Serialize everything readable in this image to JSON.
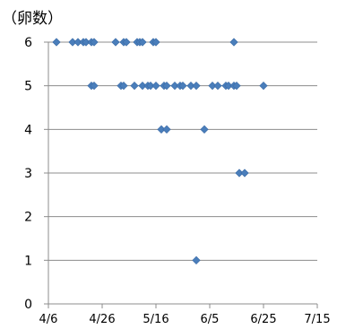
{
  "chart_data": {
    "type": "scatter",
    "title": "",
    "ylabel": "（卵数）",
    "xlabel": "",
    "ylim": [
      0,
      6
    ],
    "yticks": [
      "0",
      "1",
      "2",
      "3",
      "4",
      "5",
      "6"
    ],
    "xticks": [
      "4/6",
      "4/26",
      "5/16",
      "6/5",
      "6/25",
      "7/15"
    ],
    "x_range": [
      "4/6",
      "7/15"
    ],
    "grid": "horizontal",
    "marker_color": "#4a7ebb",
    "points": [
      {
        "x": "4/9",
        "y": 6
      },
      {
        "x": "4/15",
        "y": 6
      },
      {
        "x": "4/17",
        "y": 6
      },
      {
        "x": "4/19",
        "y": 6
      },
      {
        "x": "4/20",
        "y": 6
      },
      {
        "x": "4/22",
        "y": 6
      },
      {
        "x": "4/23",
        "y": 6
      },
      {
        "x": "5/1",
        "y": 6
      },
      {
        "x": "5/4",
        "y": 6
      },
      {
        "x": "5/5",
        "y": 6
      },
      {
        "x": "5/9",
        "y": 6
      },
      {
        "x": "5/10",
        "y": 6
      },
      {
        "x": "5/11",
        "y": 6
      },
      {
        "x": "5/15",
        "y": 6
      },
      {
        "x": "5/16",
        "y": 6
      },
      {
        "x": "6/14",
        "y": 6
      },
      {
        "x": "4/22",
        "y": 5
      },
      {
        "x": "4/23",
        "y": 5
      },
      {
        "x": "5/3",
        "y": 5
      },
      {
        "x": "5/4",
        "y": 5
      },
      {
        "x": "5/8",
        "y": 5
      },
      {
        "x": "5/11",
        "y": 5
      },
      {
        "x": "5/13",
        "y": 5
      },
      {
        "x": "5/14",
        "y": 5
      },
      {
        "x": "5/16",
        "y": 5
      },
      {
        "x": "5/19",
        "y": 5
      },
      {
        "x": "5/20",
        "y": 5
      },
      {
        "x": "5/23",
        "y": 5
      },
      {
        "x": "5/25",
        "y": 5
      },
      {
        "x": "5/26",
        "y": 5
      },
      {
        "x": "5/29",
        "y": 5
      },
      {
        "x": "5/31",
        "y": 5
      },
      {
        "x": "6/6",
        "y": 5
      },
      {
        "x": "6/8",
        "y": 5
      },
      {
        "x": "6/11",
        "y": 5
      },
      {
        "x": "6/12",
        "y": 5
      },
      {
        "x": "6/14",
        "y": 5
      },
      {
        "x": "6/15",
        "y": 5
      },
      {
        "x": "6/25",
        "y": 5
      },
      {
        "x": "5/18",
        "y": 4
      },
      {
        "x": "5/20",
        "y": 4
      },
      {
        "x": "6/3",
        "y": 4
      },
      {
        "x": "6/16",
        "y": 3
      },
      {
        "x": "6/18",
        "y": 3
      },
      {
        "x": "5/31",
        "y": 1
      }
    ]
  }
}
